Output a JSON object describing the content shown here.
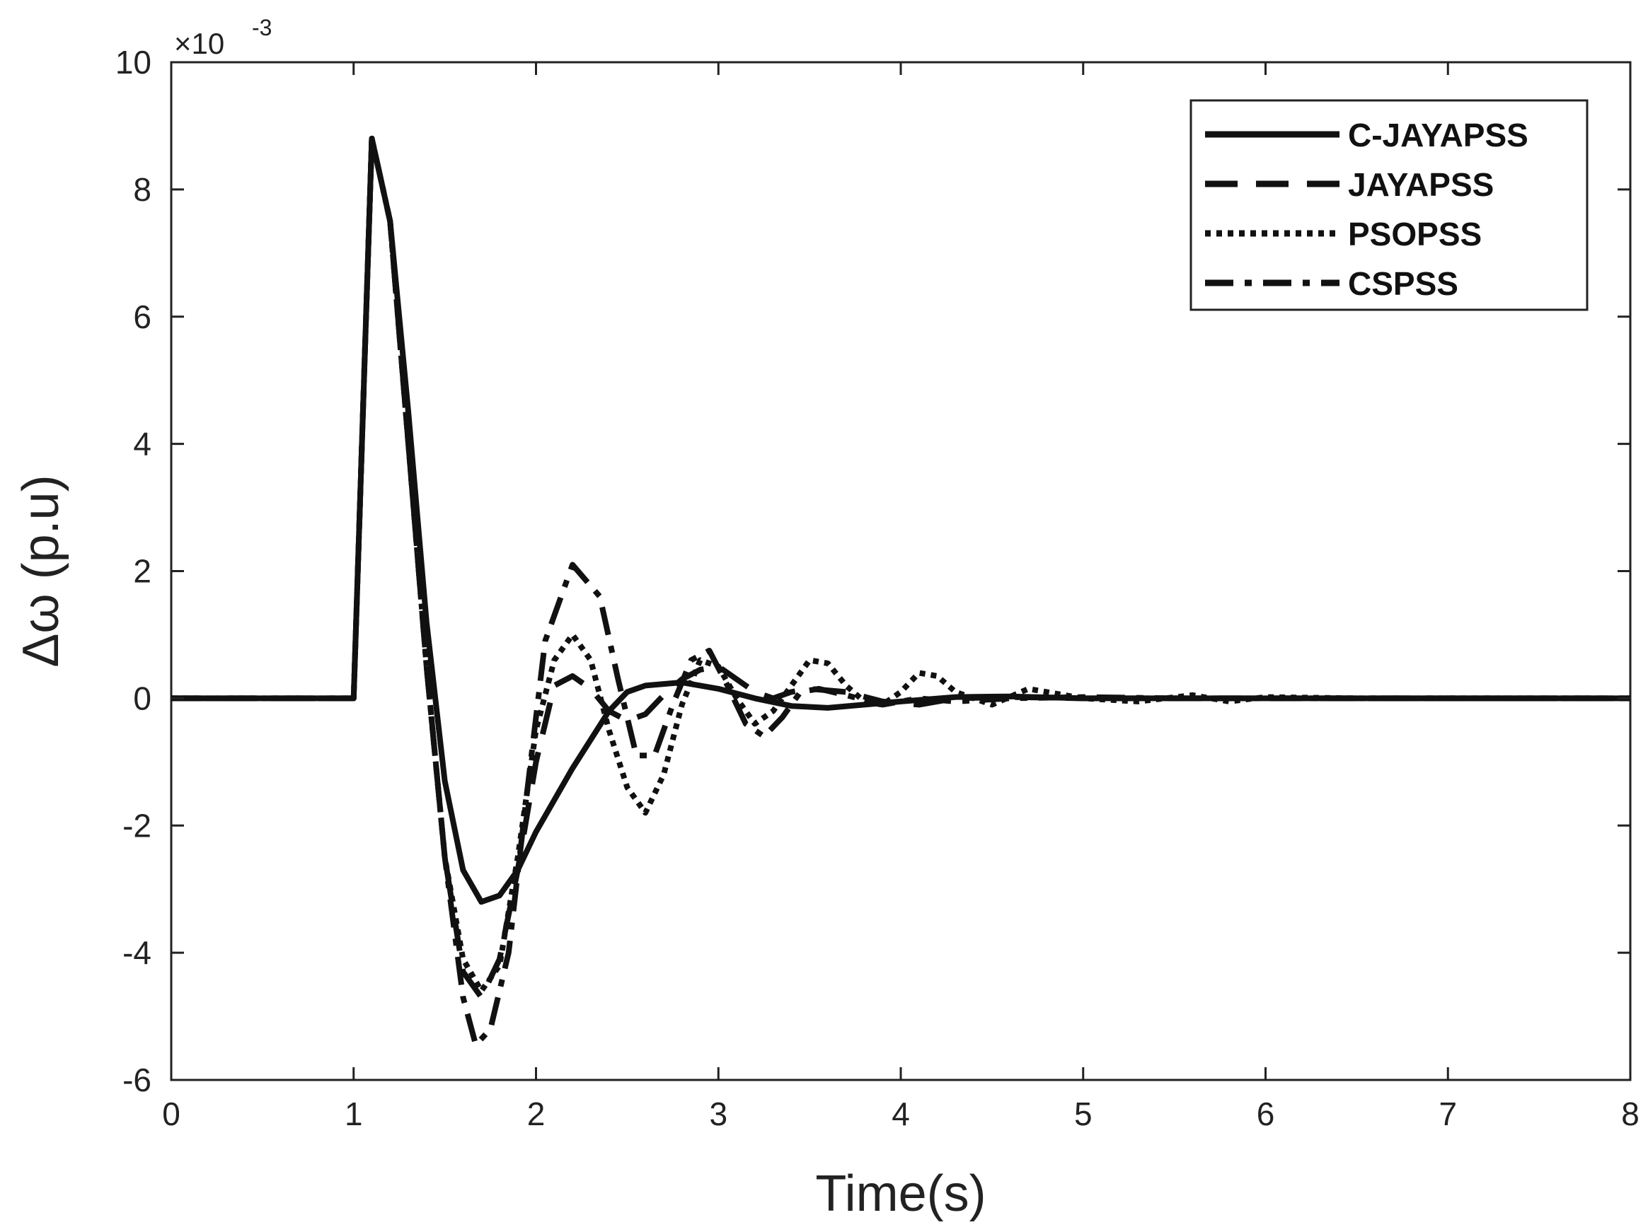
{
  "chart_data": {
    "type": "line",
    "title": "",
    "xlabel": "Time(s)",
    "ylabel": "Δω (p.u)",
    "y_exponent_label": "×10",
    "y_exponent_power": "-3",
    "xlim": [
      0,
      8
    ],
    "ylim": [
      -6,
      10
    ],
    "x_ticks": [
      "0",
      "1",
      "2",
      "3",
      "4",
      "5",
      "6",
      "7",
      "8"
    ],
    "y_ticks": [
      "-6",
      "-4",
      "-2",
      "0",
      "2",
      "4",
      "6",
      "8",
      "10"
    ],
    "grid": false,
    "legend_position": "top-right",
    "series": [
      {
        "name": "C-JAYAPSS",
        "style": "solid",
        "points": [
          [
            0,
            0
          ],
          [
            1.0,
            0
          ],
          [
            1.1,
            8.8
          ],
          [
            1.2,
            7.5
          ],
          [
            1.3,
            4.5
          ],
          [
            1.4,
            1.2
          ],
          [
            1.5,
            -1.3
          ],
          [
            1.6,
            -2.7
          ],
          [
            1.7,
            -3.2
          ],
          [
            1.8,
            -3.1
          ],
          [
            1.9,
            -2.7
          ],
          [
            2.0,
            -2.1
          ],
          [
            2.2,
            -1.1
          ],
          [
            2.4,
            -0.2
          ],
          [
            2.5,
            0.1
          ],
          [
            2.6,
            0.2
          ],
          [
            2.8,
            0.25
          ],
          [
            3.0,
            0.15
          ],
          [
            3.2,
            0.0
          ],
          [
            3.4,
            -0.12
          ],
          [
            3.6,
            -0.15
          ],
          [
            3.8,
            -0.1
          ],
          [
            4.0,
            -0.05
          ],
          [
            4.3,
            0.02
          ],
          [
            4.6,
            0.03
          ],
          [
            5.0,
            0.0
          ],
          [
            8.0,
            0.0
          ]
        ]
      },
      {
        "name": "JAYAPSS",
        "style": "dashed",
        "points": [
          [
            0,
            0
          ],
          [
            1.0,
            0
          ],
          [
            1.1,
            8.8
          ],
          [
            1.2,
            7.5
          ],
          [
            1.3,
            4.0
          ],
          [
            1.4,
            0.5
          ],
          [
            1.5,
            -2.5
          ],
          [
            1.6,
            -4.3
          ],
          [
            1.7,
            -4.7
          ],
          [
            1.8,
            -4.1
          ],
          [
            1.9,
            -2.7
          ],
          [
            2.0,
            -1.0
          ],
          [
            2.1,
            0.2
          ],
          [
            2.2,
            0.35
          ],
          [
            2.3,
            0.15
          ],
          [
            2.4,
            -0.2
          ],
          [
            2.5,
            -0.35
          ],
          [
            2.6,
            -0.25
          ],
          [
            2.7,
            0.05
          ],
          [
            2.8,
            0.3
          ],
          [
            2.9,
            0.45
          ],
          [
            3.0,
            0.5
          ],
          [
            3.1,
            0.3
          ],
          [
            3.2,
            0.1
          ],
          [
            3.3,
            0.0
          ],
          [
            3.4,
            0.1
          ],
          [
            3.5,
            0.15
          ],
          [
            3.7,
            0.1
          ],
          [
            3.9,
            -0.05
          ],
          [
            4.1,
            -0.1
          ],
          [
            4.3,
            0.0
          ],
          [
            4.6,
            0.02
          ],
          [
            5.0,
            0.0
          ],
          [
            8.0,
            0.0
          ]
        ]
      },
      {
        "name": "PSOPSS",
        "style": "dotted",
        "points": [
          [
            0,
            0
          ],
          [
            1.0,
            0
          ],
          [
            1.1,
            8.8
          ],
          [
            1.2,
            7.5
          ],
          [
            1.3,
            4.0
          ],
          [
            1.4,
            0.5
          ],
          [
            1.5,
            -2.5
          ],
          [
            1.6,
            -4.1
          ],
          [
            1.7,
            -4.6
          ],
          [
            1.8,
            -4.2
          ],
          [
            1.9,
            -2.5
          ],
          [
            2.0,
            -0.5
          ],
          [
            2.1,
            0.6
          ],
          [
            2.2,
            1.0
          ],
          [
            2.3,
            0.6
          ],
          [
            2.4,
            -0.5
          ],
          [
            2.5,
            -1.4
          ],
          [
            2.6,
            -1.8
          ],
          [
            2.7,
            -1.2
          ],
          [
            2.8,
            -0.1
          ],
          [
            2.9,
            0.6
          ],
          [
            3.0,
            0.5
          ],
          [
            3.1,
            0.0
          ],
          [
            3.2,
            -0.4
          ],
          [
            3.3,
            -0.2
          ],
          [
            3.4,
            0.2
          ],
          [
            3.5,
            0.6
          ],
          [
            3.6,
            0.55
          ],
          [
            3.7,
            0.2
          ],
          [
            3.8,
            -0.05
          ],
          [
            3.9,
            -0.1
          ],
          [
            4.0,
            0.1
          ],
          [
            4.1,
            0.4
          ],
          [
            4.2,
            0.35
          ],
          [
            4.3,
            0.1
          ],
          [
            4.5,
            -0.1
          ],
          [
            4.7,
            0.15
          ],
          [
            4.8,
            0.1
          ],
          [
            5.0,
            0.0
          ],
          [
            5.3,
            -0.05
          ],
          [
            5.6,
            0.05
          ],
          [
            5.8,
            -0.05
          ],
          [
            6.0,
            0.02
          ],
          [
            6.5,
            0.0
          ],
          [
            8.0,
            0.0
          ]
        ]
      },
      {
        "name": "CSPSS",
        "style": "dashdot",
        "points": [
          [
            0,
            0
          ],
          [
            1.0,
            0
          ],
          [
            1.1,
            8.8
          ],
          [
            1.2,
            7.5
          ],
          [
            1.3,
            4.0
          ],
          [
            1.4,
            0.5
          ],
          [
            1.5,
            -2.5
          ],
          [
            1.6,
            -4.7
          ],
          [
            1.67,
            -5.45
          ],
          [
            1.75,
            -5.2
          ],
          [
            1.85,
            -4.0
          ],
          [
            1.95,
            -1.5
          ],
          [
            2.05,
            0.9
          ],
          [
            2.2,
            2.1
          ],
          [
            2.35,
            1.6
          ],
          [
            2.45,
            0.3
          ],
          [
            2.55,
            -0.9
          ],
          [
            2.65,
            -0.9
          ],
          [
            2.75,
            -0.1
          ],
          [
            2.85,
            0.6
          ],
          [
            2.95,
            0.75
          ],
          [
            3.05,
            0.2
          ],
          [
            3.15,
            -0.4
          ],
          [
            3.25,
            -0.6
          ],
          [
            3.35,
            -0.3
          ],
          [
            3.45,
            0.1
          ],
          [
            3.55,
            0.15
          ],
          [
            3.7,
            0.05
          ],
          [
            3.9,
            -0.1
          ],
          [
            4.1,
            0.0
          ],
          [
            4.3,
            -0.05
          ],
          [
            4.6,
            0.0
          ],
          [
            5.0,
            0.02
          ],
          [
            5.5,
            0.0
          ],
          [
            8.0,
            0.0
          ]
        ]
      }
    ]
  }
}
